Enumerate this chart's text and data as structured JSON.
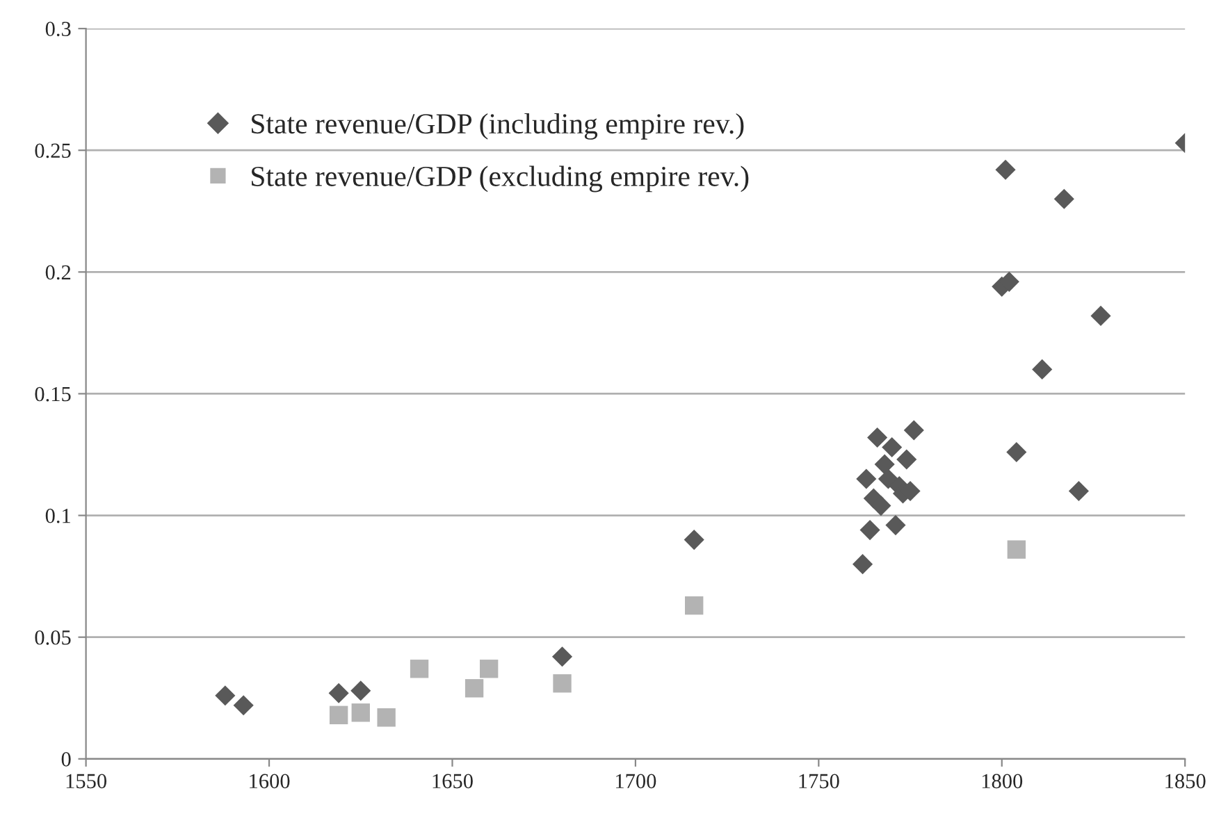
{
  "chart_data": {
    "type": "scatter",
    "series": [
      {
        "name": "State revenue/GDP (including empire rev.)",
        "color": "#595959",
        "marker": "diamond",
        "x": [
          1588,
          1593,
          1619,
          1625,
          1680,
          1716,
          1762,
          1763,
          1764,
          1765,
          1766,
          1767,
          1768,
          1769,
          1770,
          1771,
          1772,
          1773,
          1774,
          1775,
          1776,
          1800,
          1801,
          1802,
          1804,
          1811,
          1817,
          1821,
          1827,
          1850
        ],
        "values": [
          0.026,
          0.022,
          0.027,
          0.028,
          0.042,
          0.09,
          0.08,
          0.115,
          0.094,
          0.107,
          0.132,
          0.104,
          0.121,
          0.115,
          0.128,
          0.096,
          0.112,
          0.109,
          0.123,
          0.11,
          0.135,
          0.194,
          0.242,
          0.196,
          0.126,
          0.16,
          0.23,
          0.11,
          0.182,
          0.253
        ]
      },
      {
        "name": "State revenue/GDP (excluding empire rev.)",
        "color": "#b3b3b3",
        "marker": "square",
        "x": [
          1619,
          1625,
          1632,
          1641,
          1656,
          1660,
          1680,
          1716,
          1804
        ],
        "values": [
          0.018,
          0.019,
          0.017,
          0.037,
          0.029,
          0.037,
          0.031,
          0.063,
          0.086
        ]
      }
    ],
    "xlim": [
      1550,
      1850
    ],
    "xticks": [
      1550,
      1600,
      1650,
      1700,
      1750,
      1800,
      1850
    ],
    "ylim": [
      0,
      0.3
    ],
    "yticks": [
      {
        "value": 0,
        "label": "0"
      },
      0.05,
      0.1,
      0.15,
      0.2,
      0.25,
      0.3
    ],
    "grid": "y",
    "legend": "top left"
  }
}
